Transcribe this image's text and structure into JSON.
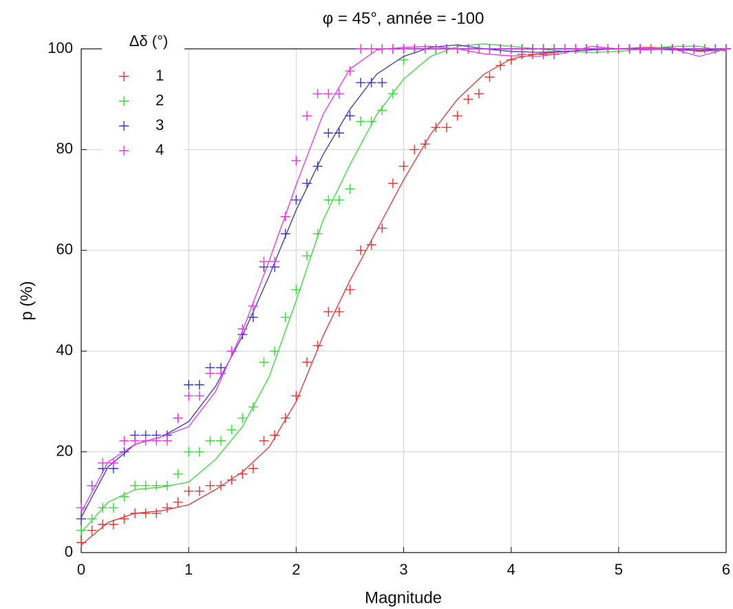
{
  "chart_data": {
    "type": "scatter",
    "title": "φ = 45°, année = -100",
    "xlabel": "Magnitude",
    "ylabel": "p (%)",
    "legend_title": "Δδ (°)",
    "legend": "upper left",
    "grid": true,
    "xlim": [
      0,
      6
    ],
    "ylim": [
      0,
      100
    ],
    "xticks": [
      0,
      1,
      2,
      3,
      4,
      5,
      6
    ],
    "yticks": [
      0,
      20,
      40,
      60,
      80,
      100
    ],
    "x": [
      0,
      0.1,
      0.2,
      0.3,
      0.4,
      0.5,
      0.6,
      0.7,
      0.8,
      0.9,
      1,
      1.1,
      1.2,
      1.3,
      1.4,
      1.5,
      1.6,
      1.7,
      1.8,
      1.9,
      2,
      2.1,
      2.2,
      2.3,
      2.4,
      2.5,
      2.6,
      2.7,
      2.8,
      2.9,
      3,
      3.1,
      3.2,
      3.3,
      3.4,
      3.5,
      3.6,
      3.7,
      3.8,
      3.9,
      4,
      4.1,
      4.2,
      4.3,
      4.4,
      4.5,
      4.6,
      4.7,
      4.8,
      4.9,
      5,
      5.1,
      5.2,
      5.3,
      5.4,
      5.5,
      5.6,
      5.7,
      5.8,
      5.9,
      6
    ],
    "fit_x": [
      0,
      0.25,
      0.5,
      0.75,
      1,
      1.25,
      1.5,
      1.75,
      2,
      2.25,
      2.5,
      2.75,
      3,
      3.25,
      3.5,
      3.75,
      4,
      4.25,
      4.5,
      4.75,
      5,
      5.25,
      5.5,
      5.75,
      6
    ],
    "series": [
      {
        "name": "1",
        "color": "#ee3030",
        "values": [
          2,
          4.4,
          5.6,
          5.6,
          6.7,
          7.8,
          7.8,
          7.8,
          8.9,
          10,
          12.2,
          12.2,
          13.3,
          13.3,
          14.4,
          15.6,
          16.7,
          22.2,
          23.3,
          26.7,
          31.1,
          37.8,
          41.1,
          47.8,
          47.8,
          52.2,
          60,
          61.1,
          64.4,
          73.3,
          76.7,
          80,
          81.1,
          84.4,
          84.4,
          86.7,
          90,
          91.1,
          94.4,
          96.7,
          97.8,
          98.9,
          98.9,
          98.9,
          98.9,
          100,
          100,
          100,
          100,
          100,
          100,
          100,
          100,
          100,
          100,
          100,
          100,
          100,
          100,
          100,
          100
        ],
        "fit": [
          1.5,
          6,
          7.8,
          8.3,
          9.5,
          12.5,
          16,
          21,
          30,
          43,
          54,
          64,
          74,
          83,
          90,
          95,
          98,
          99,
          99.5,
          99.8,
          100,
          100.3,
          100.2,
          99.5,
          99.8
        ]
      },
      {
        "name": "2",
        "color": "#33dd33",
        "values": [
          4.4,
          6.7,
          8.9,
          8.9,
          11.1,
          13.3,
          13.3,
          13.3,
          13.3,
          15.6,
          20,
          20,
          22.2,
          22.2,
          24.4,
          26.7,
          28.9,
          37.8,
          40,
          46.7,
          52.2,
          58.9,
          63.3,
          70,
          70,
          72.2,
          85.6,
          85.6,
          87.8,
          91.1,
          97.8,
          100,
          100,
          100,
          100,
          100,
          100,
          100,
          100,
          100,
          100,
          100,
          100,
          100,
          100,
          100,
          100,
          100,
          100,
          100,
          100,
          100,
          100,
          100,
          100,
          100,
          100,
          100,
          100,
          100,
          100
        ],
        "fit": [
          4,
          10,
          12.5,
          13,
          14,
          18.5,
          25,
          35,
          50,
          66,
          77,
          87,
          94,
          98.5,
          100.5,
          101,
          100.5,
          100,
          99.5,
          99.3,
          99.5,
          100,
          100.5,
          100.5,
          99.5
        ]
      },
      {
        "name": "3",
        "color": "#3535cc",
        "values": [
          6.7,
          13.3,
          16.7,
          16.7,
          20,
          23.3,
          23.3,
          23.3,
          23.3,
          26.7,
          33.3,
          33.3,
          36.7,
          36.7,
          40,
          43.3,
          46.7,
          56.7,
          56.7,
          63.3,
          70,
          73.3,
          76.7,
          83.3,
          83.3,
          86.7,
          93.3,
          93.3,
          93.3,
          100,
          100,
          100,
          100,
          100,
          100,
          100,
          100,
          100,
          100,
          100,
          100,
          100,
          100,
          100,
          100,
          100,
          100,
          100,
          100,
          100,
          100,
          100,
          100,
          100,
          100,
          100,
          100,
          100,
          100,
          100,
          100
        ],
        "fit": [
          7,
          17,
          21.5,
          23,
          26,
          33,
          43,
          55,
          68,
          79,
          88,
          95,
          98.5,
          100.3,
          100.8,
          100,
          99.5,
          99.3,
          99.5,
          99.8,
          100,
          100,
          99.8,
          99.7,
          100
        ]
      },
      {
        "name": "4",
        "color": "#ee33ee",
        "values": [
          8.9,
          13.3,
          17.8,
          17.8,
          22.2,
          22.2,
          22.2,
          22.2,
          22.2,
          26.7,
          31.1,
          31.1,
          35.6,
          35.6,
          40,
          44.4,
          48.9,
          57.8,
          57.8,
          66.7,
          77.8,
          86.7,
          91.1,
          91.1,
          91.1,
          95.6,
          100,
          100,
          100,
          100,
          100,
          100,
          100,
          100,
          100,
          100,
          100,
          100,
          100,
          100,
          100,
          100,
          100,
          100,
          100,
          100,
          100,
          100,
          100,
          100,
          100,
          100,
          100,
          100,
          100,
          100,
          100,
          100,
          100,
          100,
          100
        ],
        "fit": [
          8,
          18,
          21.5,
          23,
          25,
          32,
          44,
          58,
          73,
          87,
          96,
          99.8,
          100.3,
          100.5,
          100,
          99,
          98.6,
          98.5,
          99.2,
          100.5,
          100,
          99.8,
          100,
          98.5,
          100
        ]
      }
    ]
  }
}
